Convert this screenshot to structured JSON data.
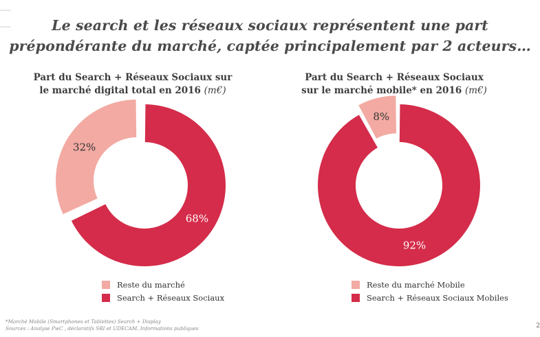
{
  "title": {
    "line1": "Le search et les réseaux sociaux représentent une part",
    "line2": "prépondérante du marché, captée principalement par 2 acteurs…"
  },
  "colors": {
    "accent": "#d42c4a",
    "light": "#f2aaa2",
    "text_on_accent": "#ffffff",
    "text_on_light": "#333333"
  },
  "chart_data": [
    {
      "type": "pie",
      "title_line1": "Part du Search + Réseaux Sociaux sur",
      "title_line2": "le marché digital total en 2016",
      "unit": "(m€)",
      "donut": true,
      "legend_position": "bottom",
      "slices": [
        {
          "label": "Reste du marché",
          "value": 32,
          "display": "32%",
          "color": "#f2aaa2",
          "exploded": true
        },
        {
          "label": "Search + Réseaux Sociaux",
          "value": 68,
          "display": "68%",
          "color": "#d42c4a",
          "exploded": false
        }
      ]
    },
    {
      "type": "pie",
      "title_line1": "Part du Search + Réseaux Sociaux",
      "title_line2": "sur le marché mobile* en 2016",
      "unit": "(m€)",
      "donut": true,
      "legend_position": "bottom",
      "slices": [
        {
          "label": "Reste du marché Mobile",
          "value": 8,
          "display": "8%",
          "color": "#f2aaa2",
          "exploded": true
        },
        {
          "label": "Search + Réseaux Sociaux Mobiles",
          "value": 92,
          "display": "92%",
          "color": "#d42c4a",
          "exploded": false
        }
      ]
    }
  ],
  "footer": {
    "note": "*Marché Mobile (Smartphones et Tablettes) Search + Display",
    "sources": "Sources : Analyse PwC , déclaratifs SRI et UDECAM, Informations publiques"
  },
  "page_number": "2"
}
